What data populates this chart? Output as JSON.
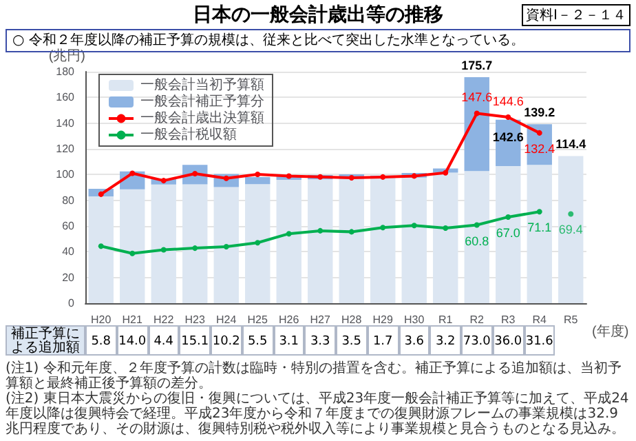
{
  "chart_data": {
    "type": "bar",
    "title": "日本の一般会計歳出等の推移",
    "subtitle": "○ 令和２年度以降の補正予算の規模は、従来と比べて突出した水準となっている。",
    "ylabel": "(兆円)",
    "xlabel": "(年度)",
    "categories": [
      "H20",
      "H21",
      "H22",
      "H23",
      "H24",
      "H25",
      "H26",
      "H27",
      "H28",
      "H29",
      "H30",
      "R1",
      "R2",
      "R3",
      "R4",
      "R5"
    ],
    "series": [
      {
        "name": "一般会計当初予算額",
        "color": "#dce6f2",
        "values": [
          83.1,
          88.5,
          92.3,
          92.4,
          90.3,
          92.6,
          95.9,
          96.3,
          96.7,
          97.5,
          97.7,
          101.5,
          102.7,
          106.6,
          107.6,
          114.4
        ]
      },
      {
        "name": "一般会計補正予算分",
        "color": "#8db3e2",
        "values": [
          5.8,
          14.0,
          4.4,
          15.1,
          10.2,
          5.5,
          3.1,
          3.3,
          3.5,
          1.7,
          3.6,
          3.2,
          73.0,
          36.0,
          31.6,
          null
        ],
        "value_labels": [
          "5.8",
          "14.0",
          "4.4",
          "15.1",
          "10.2",
          "5.5",
          "3.1",
          "3.3",
          "3.5",
          "1.7",
          "3.6",
          "3.2",
          "73.0",
          "36.0",
          "31.6",
          null
        ]
      },
      {
        "name": "一般会計歳出決算額",
        "type": "line",
        "color": "#ff0000",
        "values": [
          84.7,
          101.0,
          95.3,
          100.7,
          97.1,
          100.2,
          98.8,
          98.2,
          97.5,
          98.1,
          98.9,
          101.4,
          147.6,
          144.6,
          132.4,
          null
        ],
        "value_labels": [
          null,
          null,
          null,
          null,
          null,
          null,
          null,
          null,
          null,
          null,
          null,
          null,
          "147.6",
          "144.6",
          "132.4",
          null
        ]
      },
      {
        "name": "一般会計税収額",
        "type": "line",
        "color": "#00b050",
        "values": [
          44.3,
          38.7,
          41.5,
          42.8,
          43.9,
          47.0,
          54.0,
          56.3,
          55.5,
          58.8,
          60.4,
          58.4,
          60.8,
          67.0,
          71.1,
          null
        ],
        "value_labels": [
          null,
          null,
          null,
          null,
          null,
          null,
          null,
          null,
          null,
          null,
          null,
          null,
          "60.8",
          "67.0",
          "71.1",
          null
        ]
      },
      {
        "type": "scatter",
        "color": "#00b050",
        "x": [
          "R5"
        ],
        "values": [
          69.4
        ],
        "value_labels": [
          "69.4"
        ]
      }
    ],
    "totals": [
      null,
      null,
      null,
      null,
      null,
      null,
      null,
      null,
      null,
      null,
      null,
      null,
      "175.7",
      "142.6",
      "139.2",
      "114.4"
    ],
    "stacked": true,
    "ylim": [
      0,
      180
    ],
    "yticks": [
      0,
      20,
      40,
      60,
      80,
      100,
      120,
      140,
      160,
      180
    ],
    "grid": "y",
    "legend": "top left",
    "marker": "circle",
    "annotations": [
      "資料Ⅰ－２－１４",
      "補正予算による追加額",
      "(注1) 令和元年度、２年度予算の計数は臨時・特別の措置を含む。補正予算による追加額は、当初予算額と最終補正後予算額の差分。",
      "(注2) 東日本大震災からの復旧・復興については、平成23年度一般会計補正予算等に加えて、平成24年度以降は復興特会で経理。平成23年度から令和７年度までの復興財源フレームの事業規模は32.9兆円程度であり、その財源は、復興特別税や税外収入等により事業規模と見合うものとなる見込み。"
    ]
  }
}
